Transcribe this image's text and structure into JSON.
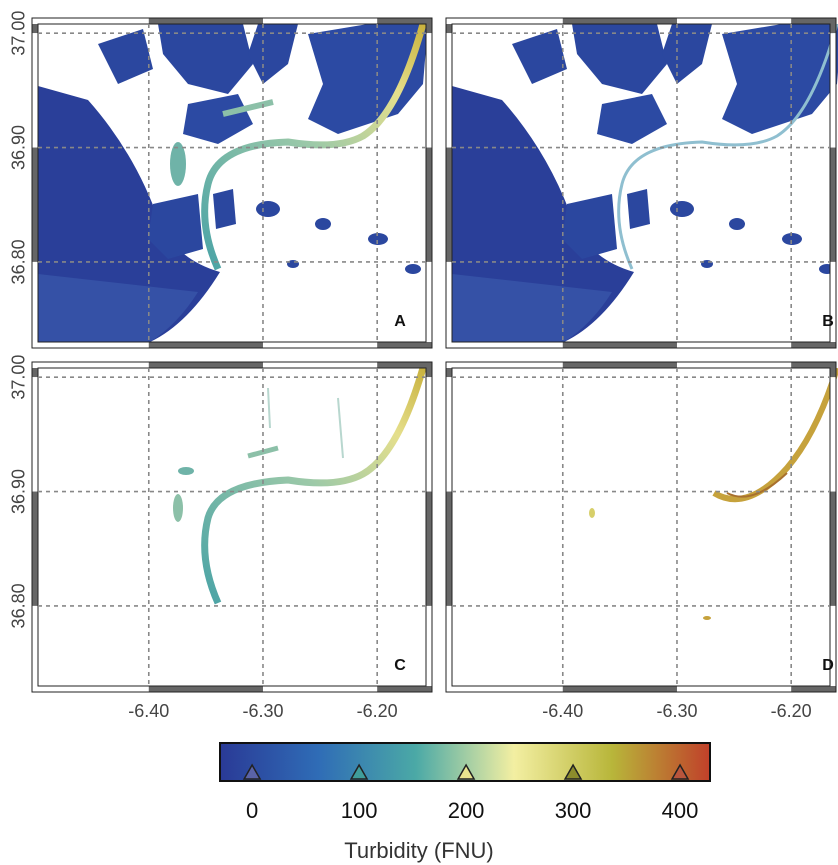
{
  "panels": [
    {
      "label": "A"
    },
    {
      "label": "B"
    },
    {
      "label": "C"
    },
    {
      "label": "D"
    }
  ],
  "map": {
    "xlim": [
      -6.497,
      -6.152
    ],
    "ylim": [
      36.73,
      37.008
    ],
    "xticks": [
      {
        "value": -6.4,
        "label": "-6.40"
      },
      {
        "value": -6.3,
        "label": "-6.30"
      },
      {
        "value": -6.2,
        "label": "-6.20"
      }
    ],
    "yticks": [
      {
        "value": 37.0,
        "label": "37.00"
      },
      {
        "value": 36.9,
        "label": "36.90"
      },
      {
        "value": 36.8,
        "label": "36.80"
      }
    ]
  },
  "colorbar": {
    "title": "Turbidity (FNU)",
    "lim": [
      -30,
      428
    ],
    "ticks": [
      0,
      100,
      200,
      300,
      400
    ],
    "colors": [
      "#2a3a96",
      "#2f6cb6",
      "#4ba9a6",
      "#f3efa2",
      "#b8b63a",
      "#c0402a"
    ],
    "tick_colors": [
      "#5a63a8",
      "#3f9d9a",
      "#e9e48e",
      "#8c8c2c",
      "#b9553c"
    ]
  }
}
